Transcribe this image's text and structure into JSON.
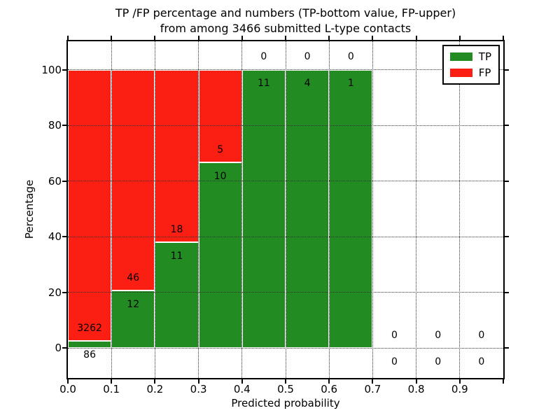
{
  "title": {
    "line1": "TP /FP percentage and numbers (TP-bottom value, FP-upper)",
    "line2": "from among 3466 submitted L-type contacts"
  },
  "chart_data": {
    "type": "bar",
    "stacked": true,
    "normalized_to_percent": true,
    "bin_starts": [
      0.0,
      0.1,
      0.2,
      0.3,
      0.4,
      0.5,
      0.6,
      0.7,
      0.8,
      0.9
    ],
    "bin_width": 0.1,
    "series": [
      {
        "name": "TP",
        "color": "#228b22",
        "counts": [
          86,
          12,
          11,
          10,
          11,
          4,
          1,
          0,
          0,
          0
        ]
      },
      {
        "name": "FP",
        "color": "#fb1e12",
        "counts": [
          3262,
          46,
          18,
          5,
          0,
          0,
          0,
          0,
          0,
          0
        ]
      }
    ],
    "tp_percent_per_bin": [
      2.57,
      20.69,
      37.93,
      66.67,
      100,
      100,
      100,
      null,
      null,
      null
    ],
    "total_contacts": 3466,
    "xlabel": "Predicted probability",
    "ylabel": "Percentage",
    "x_tick_labels": [
      "0.0",
      "0.1",
      "0.2",
      "0.3",
      "0.4",
      "0.5",
      "0.6",
      "0.7",
      "0.8",
      "0.9"
    ],
    "y_tick_labels": [
      0,
      20,
      40,
      60,
      80,
      100
    ],
    "xlim": [
      0.0,
      1.0
    ],
    "ylim": [
      -10.8,
      110.2
    ],
    "grid": "dotted, drawn above bars",
    "bar_edge_color": "#ffffff",
    "background_color": "#ffffff",
    "legend": {
      "position": "upper right",
      "entries": [
        "TP",
        "FP"
      ]
    }
  }
}
